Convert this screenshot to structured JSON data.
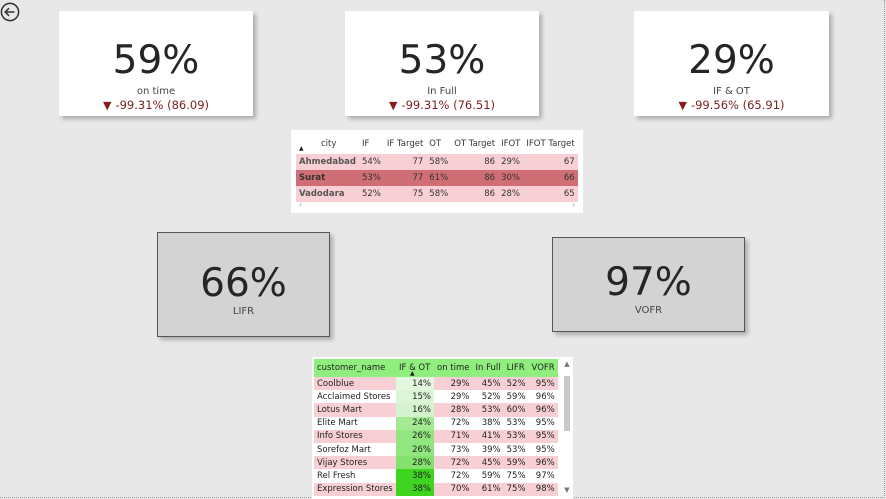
{
  "cards": [
    {
      "value": "59%",
      "label": "on time",
      "change": "-99.31% (86.09)"
    },
    {
      "value": "53%",
      "label": "In Full",
      "change": "-99.31% (76.51)"
    },
    {
      "value": "29%",
      "label": "IF & OT",
      "change": "-99.56% (65.91)"
    }
  ],
  "gray_cards": [
    {
      "value": "66%",
      "label": "LIFR"
    },
    {
      "value": "97%",
      "label": "VOFR"
    }
  ],
  "city_table": {
    "headers": [
      "city",
      "IF",
      "IF Target",
      "OT",
      "OT Target",
      "IFOT",
      "IFOT Target"
    ],
    "rows": [
      [
        "Ahmedabad",
        "54%",
        "77",
        "58%",
        "86",
        "29%",
        "67"
      ],
      [
        "Surat",
        "53%",
        "77",
        "61%",
        "86",
        "30%",
        "66"
      ],
      [
        "Vadodara",
        "52%",
        "75",
        "58%",
        "86",
        "28%",
        "65"
      ]
    ]
  },
  "customer_table": {
    "headers": [
      "customer_name",
      "IF & OT",
      "on time",
      "In Full",
      "LIFR",
      "VOFR"
    ],
    "rows": [
      [
        "Coolblue",
        "14%",
        "29%",
        "45%",
        "52%",
        "95%"
      ],
      [
        "Acclaimed Stores",
        "15%",
        "29%",
        "52%",
        "59%",
        "96%"
      ],
      [
        "Lotus Mart",
        "16%",
        "28%",
        "53%",
        "60%",
        "96%"
      ],
      [
        "Elite Mart",
        "24%",
        "72%",
        "38%",
        "53%",
        "95%"
      ],
      [
        "Info Stores",
        "26%",
        "71%",
        "41%",
        "53%",
        "95%"
      ],
      [
        "Sorefoz Mart",
        "26%",
        "73%",
        "39%",
        "53%",
        "95%"
      ],
      [
        "Vijay Stores",
        "28%",
        "72%",
        "45%",
        "59%",
        "96%"
      ],
      [
        "Rel Fresh",
        "38%",
        "72%",
        "59%",
        "75%",
        "97%"
      ],
      [
        "Expression Stores",
        "38%",
        "70%",
        "61%",
        "75%",
        "98%"
      ]
    ],
    "row_colors": [
      "#f8cfd4",
      "#ffffff",
      "#f8cfd4",
      "#ffffff",
      "#f8cfd4",
      "#ffffff",
      "#f8cfd4",
      "#ffffff",
      "#f8cfd4"
    ],
    "ifot_colors": [
      "#e3f7df",
      "#dcf5d6",
      "#d4f3ce",
      "#a4ea93",
      "#92e67f",
      "#92e67f",
      "#84e26f",
      "#3fd41f",
      "#3fd41f"
    ]
  },
  "colors": {
    "negative": "#8b1a1a",
    "highlight_row": "#cf6e74",
    "header_green": "#90ee7e"
  }
}
